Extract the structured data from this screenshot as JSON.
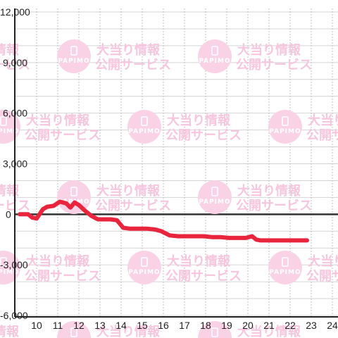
{
  "watermark": {
    "line1": "大当り情報",
    "line2": "公開サービス",
    "logo": "PAPIMO"
  },
  "colors": {
    "series": "#e8253c",
    "watermark": "#f7c6de",
    "grid": "#d4d4d4",
    "axis": "#222222"
  },
  "chart_data": {
    "type": "line",
    "title": "",
    "xlabel": "",
    "ylabel": "",
    "xlim": [
      9.2,
      24.5
    ],
    "ylim": [
      -6000,
      12000
    ],
    "x_ticks": [
      10,
      11,
      12,
      13,
      14,
      15,
      16,
      17,
      18,
      19,
      20,
      21,
      22,
      23,
      24
    ],
    "x_tick_labels": [
      "10",
      "11",
      "12",
      "13",
      "14",
      "15",
      "16",
      "17",
      "18",
      "19",
      "20",
      "21",
      "22",
      "23",
      "24"
    ],
    "y_ticks": [
      -6000,
      -3000,
      0,
      3000,
      6000,
      9000,
      12000
    ],
    "y_tick_labels": [
      "-6,000",
      "-3,000",
      "0",
      "3,000",
      "6,000",
      "9,000",
      "12,000"
    ],
    "grid": true,
    "legend": "none",
    "series": [
      {
        "x": [
          9.2,
          9.6,
          9.8,
          10.0,
          10.3,
          10.5,
          10.8,
          11.1,
          11.4,
          11.6,
          11.8,
          12.0,
          12.3,
          12.6,
          12.9,
          13.2,
          13.5,
          13.8,
          14.1,
          14.4,
          14.8,
          15.2,
          15.6,
          15.9,
          16.3,
          16.7,
          17.1,
          17.5,
          17.9,
          18.3,
          18.7,
          19.1,
          19.5,
          19.9,
          20.2,
          20.4,
          20.6,
          20.9,
          21.3,
          21.8,
          22.3,
          22.8
        ],
        "y": [
          0,
          0,
          -200,
          -250,
          300,
          450,
          500,
          750,
          650,
          400,
          700,
          550,
          200,
          -100,
          -300,
          -300,
          -300,
          -350,
          -800,
          -850,
          -850,
          -850,
          -900,
          -1000,
          -1250,
          -1300,
          -1300,
          -1300,
          -1300,
          -1350,
          -1350,
          -1400,
          -1400,
          -1400,
          -1300,
          -1500,
          -1550,
          -1550,
          -1550,
          -1550,
          -1550,
          -1550
        ]
      }
    ]
  }
}
